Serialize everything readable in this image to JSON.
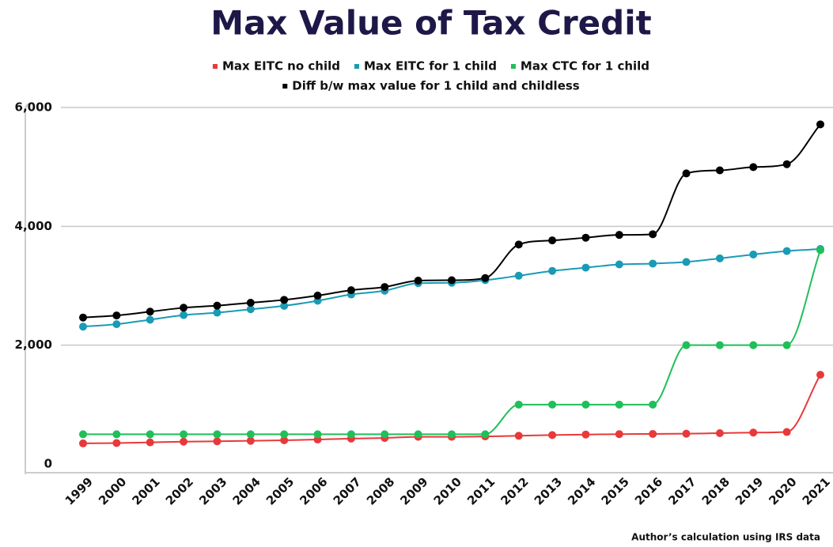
{
  "chart_data": {
    "type": "line",
    "title": "Max Value of Tax Credit",
    "categories": [
      "1999",
      "2000",
      "2001",
      "2002",
      "2003",
      "2004",
      "2005",
      "2006",
      "2007",
      "2008",
      "2009",
      "2010",
      "2011",
      "2012",
      "2013",
      "2014",
      "2015",
      "2016",
      "2017",
      "2018",
      "2019",
      "2020",
      "2021"
    ],
    "series": [
      {
        "name": "Max EITC no child",
        "color": "#e8393a",
        "values": [
          347,
          353,
          364,
          376,
          382,
          390,
          399,
          412,
          428,
          438,
          457,
          457,
          464,
          475,
          487,
          496,
          503,
          506,
          510,
          519,
          529,
          538,
          1502
        ]
      },
      {
        "name": "Max EITC for 1 child",
        "color": "#1a9bb5",
        "values": [
          2312,
          2353,
          2428,
          2506,
          2547,
          2604,
          2662,
          2747,
          2853,
          2917,
          3043,
          3050,
          3094,
          3169,
          3250,
          3305,
          3359,
          3373,
          3400,
          3461,
          3526,
          3584,
          3618
        ]
      },
      {
        "name": "Max CTC for 1 child",
        "color": "#1fbf5a",
        "values": [
          500,
          500,
          500,
          500,
          500,
          500,
          500,
          500,
          500,
          500,
          500,
          500,
          500,
          1000,
          1000,
          1000,
          1000,
          1000,
          2000,
          2000,
          2000,
          2000,
          3600
        ]
      },
      {
        "name": "Diff b/w max value for 1 child and childless",
        "color": "#000000",
        "values": [
          2465,
          2500,
          2564,
          2630,
          2665,
          2714,
          2763,
          2835,
          2925,
          2979,
          3086,
          3093,
          3130,
          3694,
          3763,
          3809,
          3856,
          3867,
          4890,
          4942,
          4997,
          5046,
          5716
        ]
      }
    ],
    "ylim": [
      0,
      6000
    ],
    "yticks": [
      0,
      {
        "value": 2000,
        "label": "2,000"
      },
      {
        "value": 4000,
        "label": "4,000"
      },
      {
        "value": 6000,
        "label": "6,000"
      }
    ],
    "grid": true,
    "note": "Author’s calculation using IRS data"
  }
}
